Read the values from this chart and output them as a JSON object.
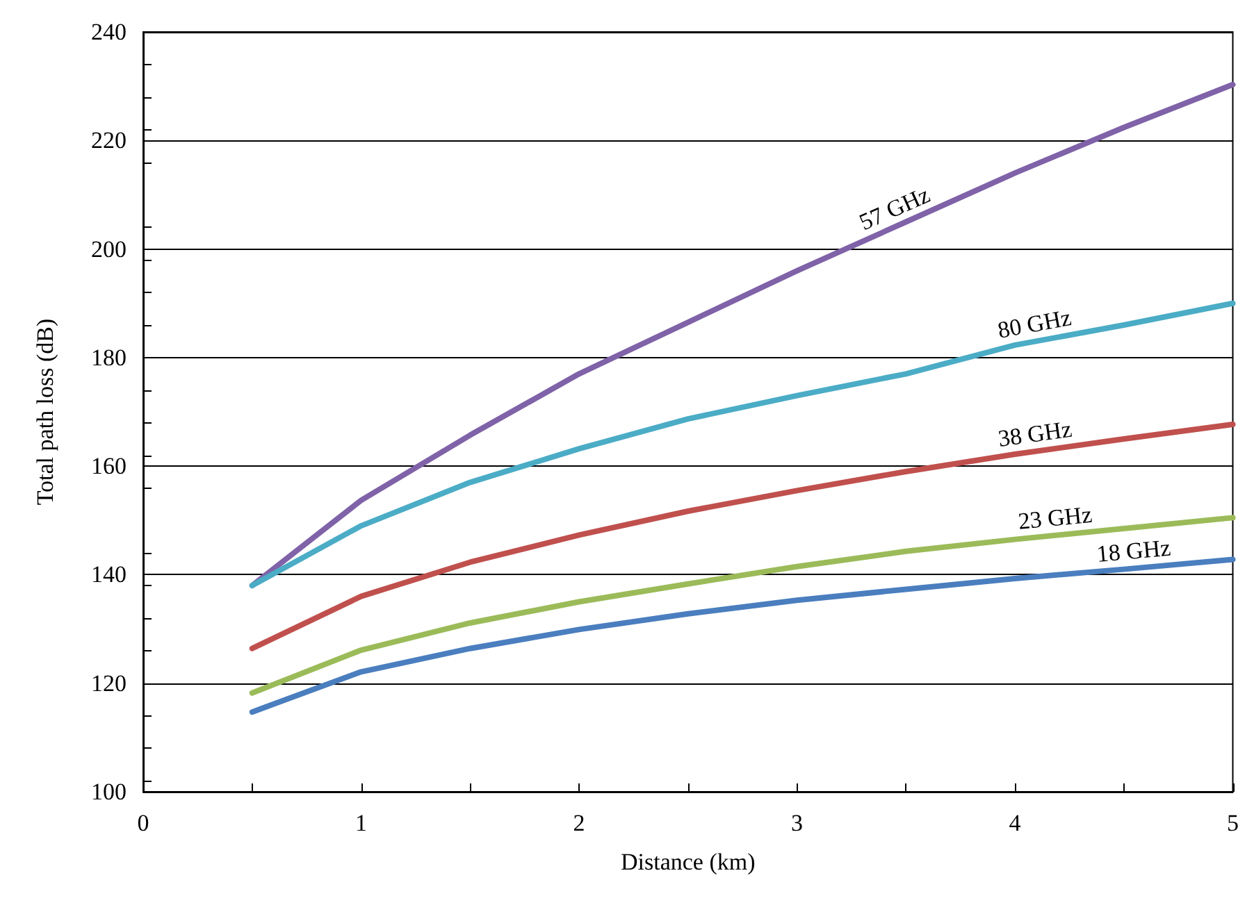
{
  "chart_data": {
    "type": "line",
    "xlabel": "Distance (km)",
    "ylabel": "Total path loss (dB)",
    "x": [
      0.5,
      1,
      1.5,
      2,
      2.5,
      3,
      3.5,
      4,
      4.5,
      5
    ],
    "series": [
      {
        "name": "57 GHz",
        "color": "#7f62a8",
        "values": [
          138,
          153.7,
          165.7,
          177,
          186.5,
          196,
          205,
          214,
          222.4,
          230.3
        ]
      },
      {
        "name": "80 GHz",
        "color": "#4bacc6",
        "values": [
          138,
          149,
          157,
          163.2,
          168.7,
          173,
          177,
          182.3,
          186,
          190
        ]
      },
      {
        "name": "38 GHz",
        "color": "#c0504d",
        "values": [
          126.4,
          136,
          142.3,
          147.3,
          151.7,
          155.5,
          159,
          162.2,
          165,
          167.7
        ]
      },
      {
        "name": "23 GHz",
        "color": "#9bbb59",
        "values": [
          118.2,
          126.1,
          131.1,
          135,
          138.3,
          141.5,
          144.3,
          146.5,
          148.5,
          150.5
        ]
      },
      {
        "name": "18 GHz",
        "color": "#4a7ebf",
        "values": [
          114.7,
          122.1,
          126.4,
          129.9,
          132.8,
          135.3,
          137.3,
          139.3,
          141,
          142.8
        ]
      }
    ],
    "xlim": [
      0,
      5
    ],
    "xticks": [
      0,
      1,
      2,
      3,
      4,
      5
    ],
    "ylim": [
      100,
      240
    ],
    "yticks": [
      100,
      120,
      140,
      160,
      180,
      200,
      220,
      240
    ],
    "grid": "y",
    "legend": false,
    "marker": "none",
    "line_style": "solid"
  }
}
